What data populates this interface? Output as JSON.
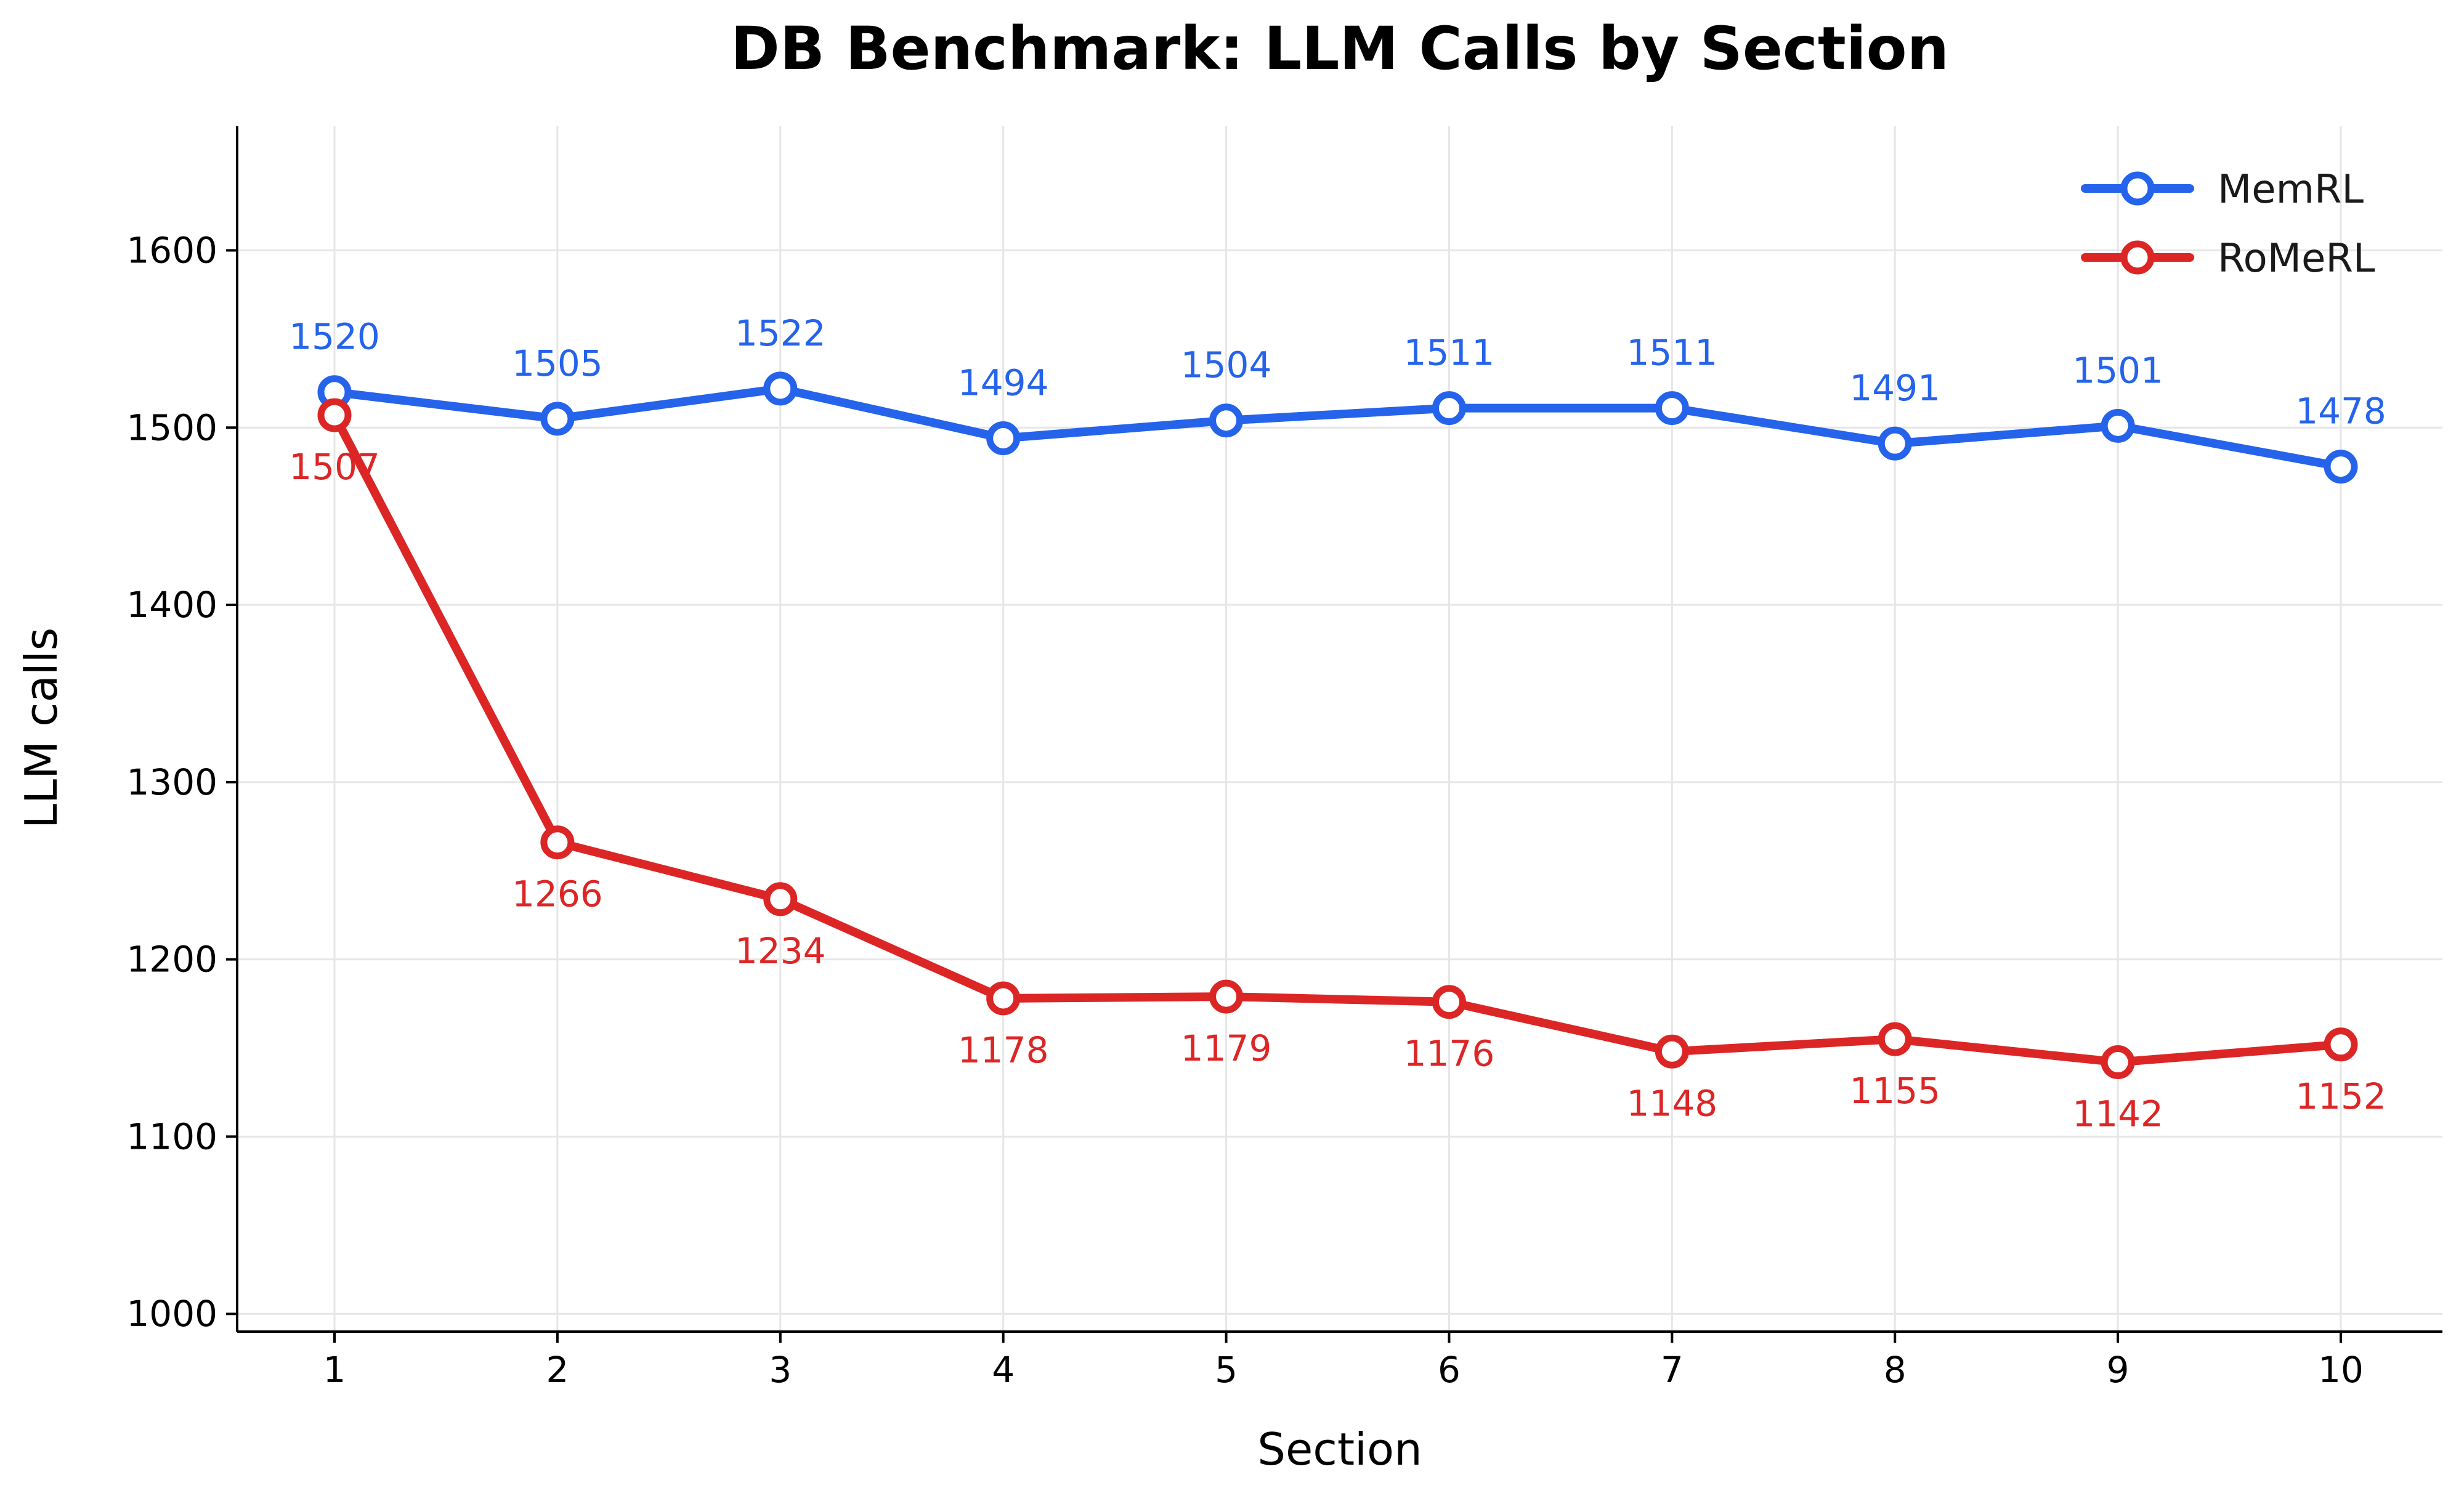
{
  "chart_data": {
    "type": "line",
    "title": "DB Benchmark: LLM Calls by Section",
    "xlabel": "Section",
    "ylabel": "LLM calls",
    "x": [
      1,
      2,
      3,
      4,
      5,
      6,
      7,
      8,
      9,
      10
    ],
    "ylim": [
      990,
      1670
    ],
    "yticks": [
      1000,
      1100,
      1200,
      1300,
      1400,
      1500,
      1600
    ],
    "grid": true,
    "legend_position": "top-right",
    "series": [
      {
        "name": "MemRL",
        "color": "#2563eb",
        "label_position": "above",
        "values": [
          1520,
          1505,
          1522,
          1494,
          1504,
          1511,
          1511,
          1491,
          1501,
          1478
        ]
      },
      {
        "name": "RoMeRL",
        "color": "#dc2626",
        "label_position": "below",
        "values": [
          1507,
          1266,
          1234,
          1178,
          1179,
          1176,
          1148,
          1155,
          1142,
          1152
        ]
      }
    ]
  }
}
